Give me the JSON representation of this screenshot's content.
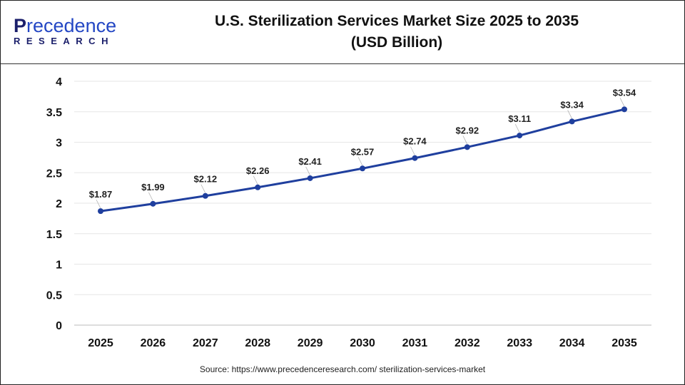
{
  "logo": {
    "line1_first": "P",
    "line1_rest": "recedence",
    "line2": "RESEARCH"
  },
  "title_line1": "U.S. Sterilization Services Market Size 2025 to 2035",
  "title_line2": "(USD Billion)",
  "source": "Source: https://www.precedenceresearch.com/ sterilization-services-market",
  "chart_data": {
    "type": "line",
    "title": "U.S. Sterilization Services Market Size 2025 to 2035 (USD Billion)",
    "categories": [
      "2025",
      "2026",
      "2027",
      "2028",
      "2029",
      "2030",
      "2031",
      "2032",
      "2033",
      "2034",
      "2035"
    ],
    "values": [
      1.87,
      1.99,
      2.12,
      2.26,
      2.41,
      2.57,
      2.74,
      2.92,
      3.11,
      3.34,
      3.54
    ],
    "data_labels": [
      "$1.87",
      "$1.99",
      "$2.12",
      "$2.26",
      "$2.41",
      "$2.57",
      "$2.74",
      "$2.92",
      "$3.11",
      "$3.34",
      "$3.54"
    ],
    "yticks": [
      "0",
      "0.5",
      "1",
      "1.5",
      "2",
      "2.5",
      "3",
      "3.5",
      "4"
    ],
    "ylim": [
      0,
      4
    ],
    "grid": true,
    "line_color": "#1f3f9e"
  }
}
